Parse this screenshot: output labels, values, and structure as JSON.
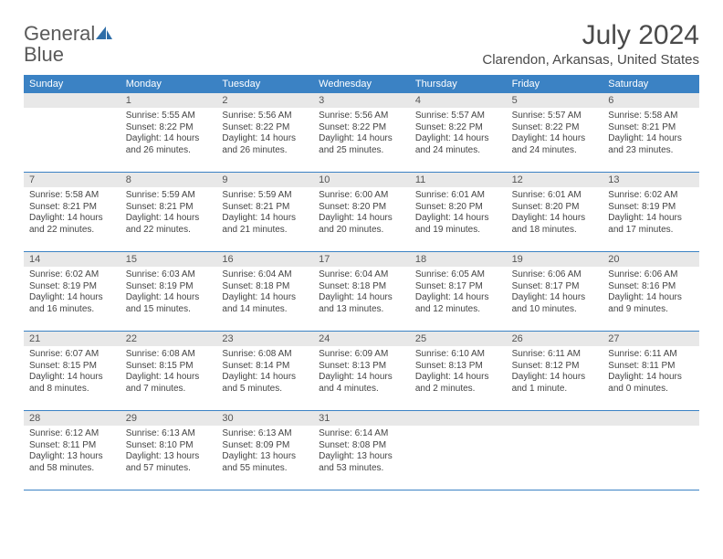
{
  "brand": {
    "word1": "General",
    "word2": "Blue"
  },
  "title": "July 2024",
  "location": "Clarendon, Arkansas, United States",
  "colors": {
    "header_bar": "#3b82c4",
    "daynum_bg": "#e8e8e8",
    "text": "#444444",
    "title_text": "#4a4a4a"
  },
  "dow": [
    "Sunday",
    "Monday",
    "Tuesday",
    "Wednesday",
    "Thursday",
    "Friday",
    "Saturday"
  ],
  "weeks": [
    [
      null,
      {
        "n": "1",
        "sr": "Sunrise: 5:55 AM",
        "ss": "Sunset: 8:22 PM",
        "dl": "Daylight: 14 hours and 26 minutes."
      },
      {
        "n": "2",
        "sr": "Sunrise: 5:56 AM",
        "ss": "Sunset: 8:22 PM",
        "dl": "Daylight: 14 hours and 26 minutes."
      },
      {
        "n": "3",
        "sr": "Sunrise: 5:56 AM",
        "ss": "Sunset: 8:22 PM",
        "dl": "Daylight: 14 hours and 25 minutes."
      },
      {
        "n": "4",
        "sr": "Sunrise: 5:57 AM",
        "ss": "Sunset: 8:22 PM",
        "dl": "Daylight: 14 hours and 24 minutes."
      },
      {
        "n": "5",
        "sr": "Sunrise: 5:57 AM",
        "ss": "Sunset: 8:22 PM",
        "dl": "Daylight: 14 hours and 24 minutes."
      },
      {
        "n": "6",
        "sr": "Sunrise: 5:58 AM",
        "ss": "Sunset: 8:21 PM",
        "dl": "Daylight: 14 hours and 23 minutes."
      }
    ],
    [
      {
        "n": "7",
        "sr": "Sunrise: 5:58 AM",
        "ss": "Sunset: 8:21 PM",
        "dl": "Daylight: 14 hours and 22 minutes."
      },
      {
        "n": "8",
        "sr": "Sunrise: 5:59 AM",
        "ss": "Sunset: 8:21 PM",
        "dl": "Daylight: 14 hours and 22 minutes."
      },
      {
        "n": "9",
        "sr": "Sunrise: 5:59 AM",
        "ss": "Sunset: 8:21 PM",
        "dl": "Daylight: 14 hours and 21 minutes."
      },
      {
        "n": "10",
        "sr": "Sunrise: 6:00 AM",
        "ss": "Sunset: 8:20 PM",
        "dl": "Daylight: 14 hours and 20 minutes."
      },
      {
        "n": "11",
        "sr": "Sunrise: 6:01 AM",
        "ss": "Sunset: 8:20 PM",
        "dl": "Daylight: 14 hours and 19 minutes."
      },
      {
        "n": "12",
        "sr": "Sunrise: 6:01 AM",
        "ss": "Sunset: 8:20 PM",
        "dl": "Daylight: 14 hours and 18 minutes."
      },
      {
        "n": "13",
        "sr": "Sunrise: 6:02 AM",
        "ss": "Sunset: 8:19 PM",
        "dl": "Daylight: 14 hours and 17 minutes."
      }
    ],
    [
      {
        "n": "14",
        "sr": "Sunrise: 6:02 AM",
        "ss": "Sunset: 8:19 PM",
        "dl": "Daylight: 14 hours and 16 minutes."
      },
      {
        "n": "15",
        "sr": "Sunrise: 6:03 AM",
        "ss": "Sunset: 8:19 PM",
        "dl": "Daylight: 14 hours and 15 minutes."
      },
      {
        "n": "16",
        "sr": "Sunrise: 6:04 AM",
        "ss": "Sunset: 8:18 PM",
        "dl": "Daylight: 14 hours and 14 minutes."
      },
      {
        "n": "17",
        "sr": "Sunrise: 6:04 AM",
        "ss": "Sunset: 8:18 PM",
        "dl": "Daylight: 14 hours and 13 minutes."
      },
      {
        "n": "18",
        "sr": "Sunrise: 6:05 AM",
        "ss": "Sunset: 8:17 PM",
        "dl": "Daylight: 14 hours and 12 minutes."
      },
      {
        "n": "19",
        "sr": "Sunrise: 6:06 AM",
        "ss": "Sunset: 8:17 PM",
        "dl": "Daylight: 14 hours and 10 minutes."
      },
      {
        "n": "20",
        "sr": "Sunrise: 6:06 AM",
        "ss": "Sunset: 8:16 PM",
        "dl": "Daylight: 14 hours and 9 minutes."
      }
    ],
    [
      {
        "n": "21",
        "sr": "Sunrise: 6:07 AM",
        "ss": "Sunset: 8:15 PM",
        "dl": "Daylight: 14 hours and 8 minutes."
      },
      {
        "n": "22",
        "sr": "Sunrise: 6:08 AM",
        "ss": "Sunset: 8:15 PM",
        "dl": "Daylight: 14 hours and 7 minutes."
      },
      {
        "n": "23",
        "sr": "Sunrise: 6:08 AM",
        "ss": "Sunset: 8:14 PM",
        "dl": "Daylight: 14 hours and 5 minutes."
      },
      {
        "n": "24",
        "sr": "Sunrise: 6:09 AM",
        "ss": "Sunset: 8:13 PM",
        "dl": "Daylight: 14 hours and 4 minutes."
      },
      {
        "n": "25",
        "sr": "Sunrise: 6:10 AM",
        "ss": "Sunset: 8:13 PM",
        "dl": "Daylight: 14 hours and 2 minutes."
      },
      {
        "n": "26",
        "sr": "Sunrise: 6:11 AM",
        "ss": "Sunset: 8:12 PM",
        "dl": "Daylight: 14 hours and 1 minute."
      },
      {
        "n": "27",
        "sr": "Sunrise: 6:11 AM",
        "ss": "Sunset: 8:11 PM",
        "dl": "Daylight: 14 hours and 0 minutes."
      }
    ],
    [
      {
        "n": "28",
        "sr": "Sunrise: 6:12 AM",
        "ss": "Sunset: 8:11 PM",
        "dl": "Daylight: 13 hours and 58 minutes."
      },
      {
        "n": "29",
        "sr": "Sunrise: 6:13 AM",
        "ss": "Sunset: 8:10 PM",
        "dl": "Daylight: 13 hours and 57 minutes."
      },
      {
        "n": "30",
        "sr": "Sunrise: 6:13 AM",
        "ss": "Sunset: 8:09 PM",
        "dl": "Daylight: 13 hours and 55 minutes."
      },
      {
        "n": "31",
        "sr": "Sunrise: 6:14 AM",
        "ss": "Sunset: 8:08 PM",
        "dl": "Daylight: 13 hours and 53 minutes."
      },
      null,
      null,
      null
    ]
  ]
}
